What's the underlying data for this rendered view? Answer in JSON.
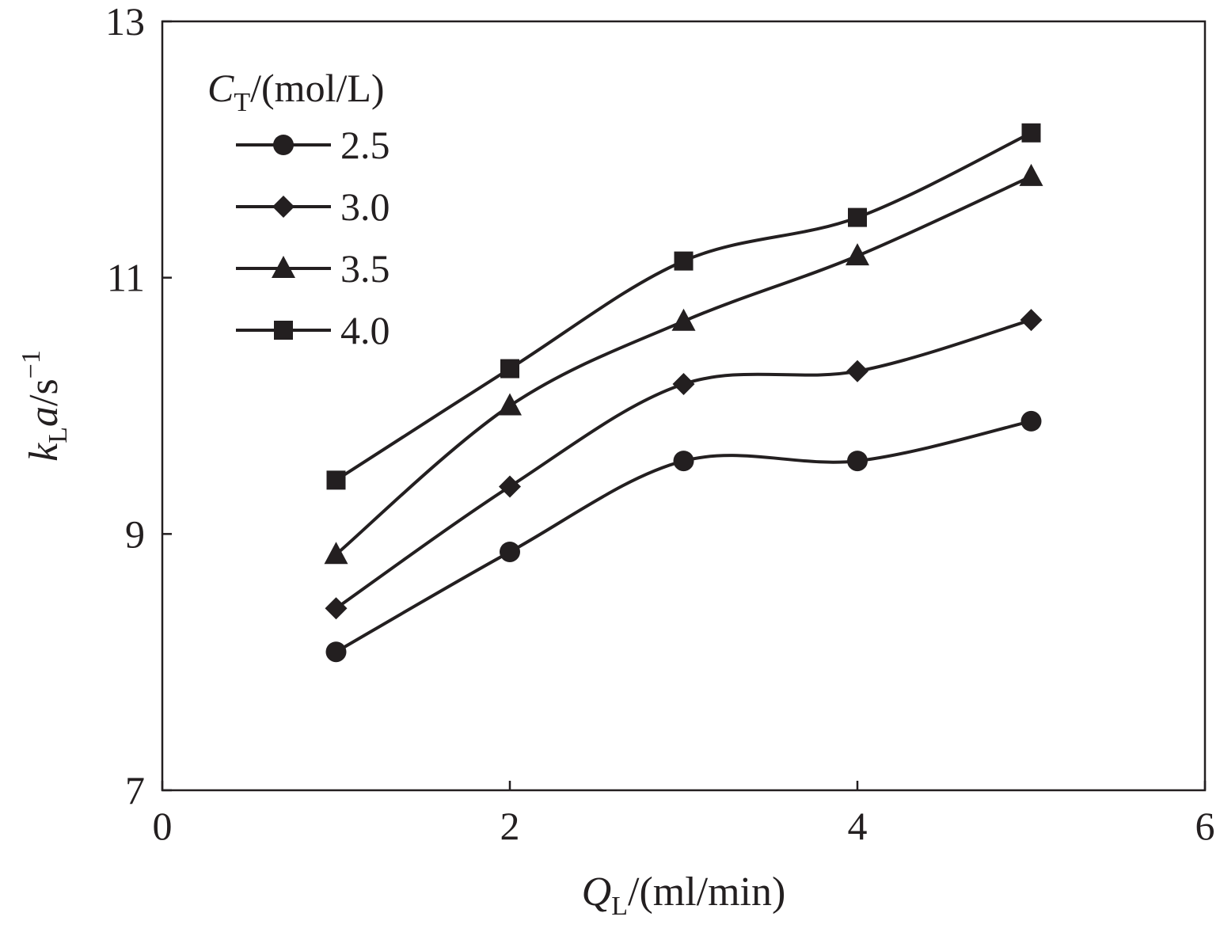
{
  "chart_data": {
    "type": "line",
    "title": "",
    "xlabel": {
      "main": "Q",
      "sub": "L",
      "unit": "/(ml/min)"
    },
    "ylabel": {
      "main": "k",
      "sub": "L",
      "italic2": "a",
      "unit": "/s",
      "sup": "−1"
    },
    "xlim": [
      0,
      6
    ],
    "ylim": [
      7,
      13
    ],
    "xticks": [
      0,
      2,
      4,
      6
    ],
    "yticks": [
      7,
      9,
      11,
      13
    ],
    "xtick_labels": [
      "0",
      "2",
      "4",
      "6"
    ],
    "ytick_labels": [
      "7",
      "9",
      "11",
      "13"
    ],
    "grid": false,
    "legend": {
      "title_main": "C",
      "title_sub": "T",
      "title_unit": "/(mol/L)",
      "position": "top-left"
    },
    "x": [
      1,
      2,
      3,
      4,
      5
    ],
    "series": [
      {
        "name": "2.5",
        "marker": "circle",
        "values": [
          8.08,
          8.86,
          9.57,
          9.57,
          9.88
        ]
      },
      {
        "name": "3.0",
        "marker": "diamond",
        "values": [
          8.42,
          9.37,
          10.17,
          10.27,
          10.67
        ]
      },
      {
        "name": "3.5",
        "marker": "triangle",
        "values": [
          8.84,
          10.0,
          10.66,
          11.17,
          11.79
        ]
      },
      {
        "name": "4.0",
        "marker": "square",
        "values": [
          9.42,
          10.29,
          11.13,
          11.47,
          12.13
        ]
      }
    ],
    "colors": {
      "ink": "#231f20"
    }
  }
}
